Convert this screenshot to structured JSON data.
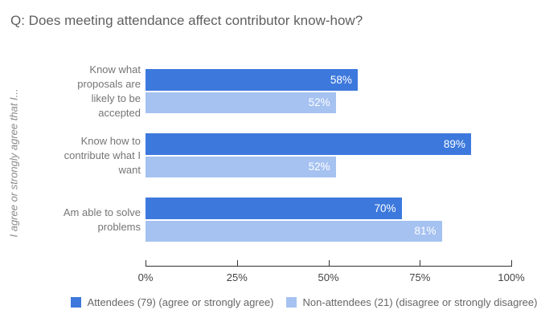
{
  "title": "Q: Does meeting attendance affect contributor know-how?",
  "y_axis_title": "I agree or strongly agree that I...",
  "legend": {
    "items": [
      {
        "label": "Attendees (79) (agree or strongly agree)",
        "color": "#3d79dd"
      },
      {
        "label": "Non-attendees (21) (disagree or strongly disagree)",
        "color": "#a6c2f1"
      }
    ]
  },
  "colors": {
    "attendees_bar": "#3d79dd",
    "non_attendees_bar": "#a6c2f1",
    "title_text": "#5f5f5f",
    "category_label_text": "#757575",
    "axis_tick_text": "#444444",
    "axis_line": "#333333",
    "value_label_text": "#ffffff",
    "legend_text": "#666666",
    "background": "#ffffff"
  },
  "chart_data": {
    "type": "bar",
    "orientation": "horizontal",
    "title": "Q: Does meeting attendance affect contributor know-how?",
    "ylabel": "I agree or strongly agree that I...",
    "xlabel": "",
    "xlim": [
      0,
      100
    ],
    "x_tick_labels": [
      "0%",
      "25%",
      "50%",
      "75%",
      "100%"
    ],
    "grid": false,
    "legend_position": "bottom",
    "categories": [
      "Know what proposals are likely to be accepted",
      "Know how to contribute what I want",
      "Am able to solve problems"
    ],
    "category_label_lines": [
      [
        "Know what",
        "proposals are",
        "likely to be",
        "accepted"
      ],
      [
        "Know how to",
        "contribute what I",
        "want"
      ],
      [
        "Am able to solve",
        "problems"
      ]
    ],
    "series": [
      {
        "name": "Attendees (79) (agree or strongly agree)",
        "color": "#3d79dd",
        "values": [
          58,
          89,
          70
        ],
        "value_labels": [
          "58%",
          "89%",
          "70%"
        ]
      },
      {
        "name": "Non-attendees (21) (disagree or strongly disagree)",
        "color": "#a6c2f1",
        "values": [
          52,
          52,
          81
        ],
        "value_labels": [
          "52%",
          "52%",
          "81%"
        ]
      }
    ]
  }
}
